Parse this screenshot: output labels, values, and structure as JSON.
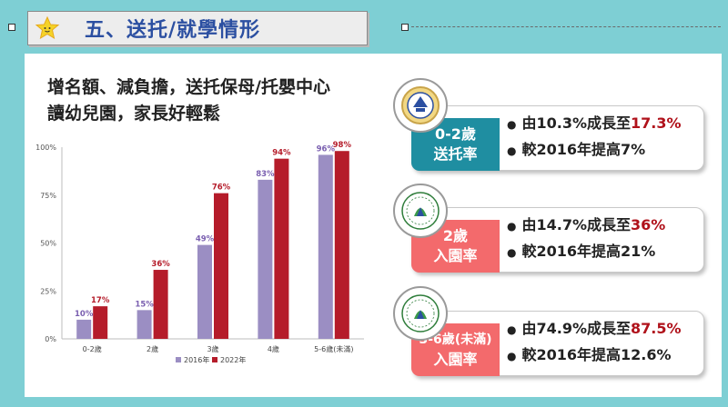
{
  "title": "五、送托/就學情形",
  "headline": [
    "增名額、減負擔，送托保母/托嬰中心",
    "讀幼兒園，家長好輕鬆"
  ],
  "chart_data": {
    "type": "bar",
    "categories": [
      "0-2歲",
      "2歲",
      "3歲",
      "4歲",
      "5-6歲(未滿)"
    ],
    "series": [
      {
        "name": "2016年",
        "values": [
          10,
          15,
          49,
          83,
          96
        ],
        "color": "#9b8ec3"
      },
      {
        "name": "2022年",
        "values": [
          17,
          36,
          76,
          94,
          98
        ],
        "color": "#b51c2a"
      }
    ],
    "ylim": [
      0,
      100
    ],
    "yticks": [
      "0%",
      "25%",
      "50%",
      "75%",
      "100%"
    ],
    "yticks_values": [
      0,
      25,
      50,
      75,
      100
    ],
    "grid": false,
    "legend": "bottom"
  },
  "cards": [
    {
      "tag": [
        "0-2歲",
        "送托率"
      ],
      "tag_color": "#1f8ea1",
      "line1_prefix": "由10.3%成長至",
      "line1_highlight": "17.3%",
      "line2": "較2016年提高7%"
    },
    {
      "tag": [
        "2歲",
        "入園率"
      ],
      "tag_color": "#f36a6c",
      "line1_prefix": "由14.7%成長至",
      "line1_highlight": "36%",
      "line2": "較2016年提高21%"
    },
    {
      "tag": [
        "3-6歲(未滿)",
        "入園率"
      ],
      "tag_color": "#f36a6c",
      "line1_prefix": "由74.9%成長至",
      "line1_highlight": "87.5%",
      "line2": "較2016年提高12.6%"
    }
  ],
  "bullet": "●",
  "colors": {
    "background": "#7ecfd4",
    "title": "#2b4fa1",
    "highlight": "#b0121b"
  }
}
